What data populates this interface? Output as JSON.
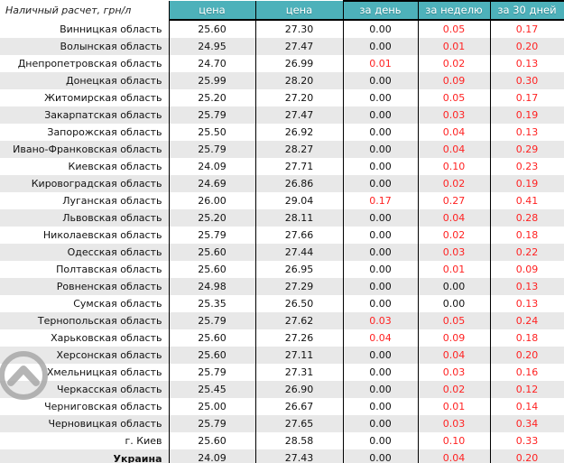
{
  "colors": {
    "header_bg": "#4db1ba",
    "header_text": "#ffffff",
    "row_stripe": "#e8e8e8",
    "change_positive": "#ff2222",
    "text": "#111111",
    "grid_border": "#000000",
    "scroll_icon": "#a6a6a6"
  },
  "chart_data": {
    "type": "table",
    "corner_label": "Наличный расчет, грн/л",
    "columns": [
      "цена",
      "цена",
      "за день",
      "за неделю",
      "за 30 дней"
    ],
    "rows": [
      {
        "region": "Винницкая область",
        "price1": "25.60",
        "price2": "27.30",
        "change_day": "0.00",
        "change_week": "0.05",
        "change_month": "0.17",
        "is_total": false
      },
      {
        "region": "Волынская область",
        "price1": "24.95",
        "price2": "27.47",
        "change_day": "0.00",
        "change_week": "0.01",
        "change_month": "0.20",
        "is_total": false
      },
      {
        "region": "Днепропетровская область",
        "price1": "24.70",
        "price2": "26.99",
        "change_day": "0.01",
        "change_week": "0.02",
        "change_month": "0.13",
        "is_total": false
      },
      {
        "region": "Донецкая область",
        "price1": "25.99",
        "price2": "28.20",
        "change_day": "0.00",
        "change_week": "0.09",
        "change_month": "0.30",
        "is_total": false
      },
      {
        "region": "Житомирская область",
        "price1": "25.20",
        "price2": "27.20",
        "change_day": "0.00",
        "change_week": "0.05",
        "change_month": "0.17",
        "is_total": false
      },
      {
        "region": "Закарпатская область",
        "price1": "25.79",
        "price2": "27.47",
        "change_day": "0.00",
        "change_week": "0.03",
        "change_month": "0.19",
        "is_total": false
      },
      {
        "region": "Запорожская область",
        "price1": "25.50",
        "price2": "26.92",
        "change_day": "0.00",
        "change_week": "0.04",
        "change_month": "0.13",
        "is_total": false
      },
      {
        "region": "Ивано-Франковская область",
        "price1": "25.79",
        "price2": "28.27",
        "change_day": "0.00",
        "change_week": "0.04",
        "change_month": "0.29",
        "is_total": false
      },
      {
        "region": "Киевская область",
        "price1": "24.09",
        "price2": "27.71",
        "change_day": "0.00",
        "change_week": "0.10",
        "change_month": "0.23",
        "is_total": false
      },
      {
        "region": "Кировоградская область",
        "price1": "24.69",
        "price2": "26.86",
        "change_day": "0.00",
        "change_week": "0.02",
        "change_month": "0.19",
        "is_total": false
      },
      {
        "region": "Луганская область",
        "price1": "26.00",
        "price2": "29.04",
        "change_day": "0.17",
        "change_week": "0.27",
        "change_month": "0.41",
        "is_total": false
      },
      {
        "region": "Львовская область",
        "price1": "25.20",
        "price2": "28.11",
        "change_day": "0.00",
        "change_week": "0.04",
        "change_month": "0.28",
        "is_total": false
      },
      {
        "region": "Николаевская область",
        "price1": "25.79",
        "price2": "27.66",
        "change_day": "0.00",
        "change_week": "0.02",
        "change_month": "0.18",
        "is_total": false
      },
      {
        "region": "Одесская область",
        "price1": "25.60",
        "price2": "27.44",
        "change_day": "0.00",
        "change_week": "0.03",
        "change_month": "0.22",
        "is_total": false
      },
      {
        "region": "Полтавская область",
        "price1": "25.60",
        "price2": "26.95",
        "change_day": "0.00",
        "change_week": "0.01",
        "change_month": "0.09",
        "is_total": false
      },
      {
        "region": "Ровненская область",
        "price1": "24.98",
        "price2": "27.29",
        "change_day": "0.00",
        "change_week": "0.00",
        "change_month": "0.13",
        "is_total": false
      },
      {
        "region": "Сумская область",
        "price1": "25.35",
        "price2": "26.50",
        "change_day": "0.00",
        "change_week": "0.00",
        "change_month": "0.13",
        "is_total": false
      },
      {
        "region": "Тернопольская область",
        "price1": "25.79",
        "price2": "27.62",
        "change_day": "0.03",
        "change_week": "0.05",
        "change_month": "0.24",
        "is_total": false
      },
      {
        "region": "Харьковская область",
        "price1": "25.60",
        "price2": "27.26",
        "change_day": "0.04",
        "change_week": "0.09",
        "change_month": "0.18",
        "is_total": false
      },
      {
        "region": "Херсонская область",
        "price1": "25.60",
        "price2": "27.11",
        "change_day": "0.00",
        "change_week": "0.04",
        "change_month": "0.20",
        "is_total": false
      },
      {
        "region": "Хмельницкая область",
        "price1": "25.79",
        "price2": "27.31",
        "change_day": "0.00",
        "change_week": "0.03",
        "change_month": "0.16",
        "is_total": false
      },
      {
        "region": "Черкасская область",
        "price1": "25.45",
        "price2": "26.90",
        "change_day": "0.00",
        "change_week": "0.02",
        "change_month": "0.12",
        "is_total": false
      },
      {
        "region": "Черниговская область",
        "price1": "25.00",
        "price2": "26.67",
        "change_day": "0.00",
        "change_week": "0.01",
        "change_month": "0.14",
        "is_total": false
      },
      {
        "region": "Черновицкая область",
        "price1": "25.79",
        "price2": "27.65",
        "change_day": "0.00",
        "change_week": "0.03",
        "change_month": "0.34",
        "is_total": false
      },
      {
        "region": "г. Киев",
        "price1": "25.60",
        "price2": "28.58",
        "change_day": "0.00",
        "change_week": "0.10",
        "change_month": "0.33",
        "is_total": false
      },
      {
        "region": "Украина",
        "price1": "24.09",
        "price2": "27.43",
        "change_day": "0.00",
        "change_week": "0.04",
        "change_month": "0.20",
        "is_total": true
      }
    ]
  }
}
